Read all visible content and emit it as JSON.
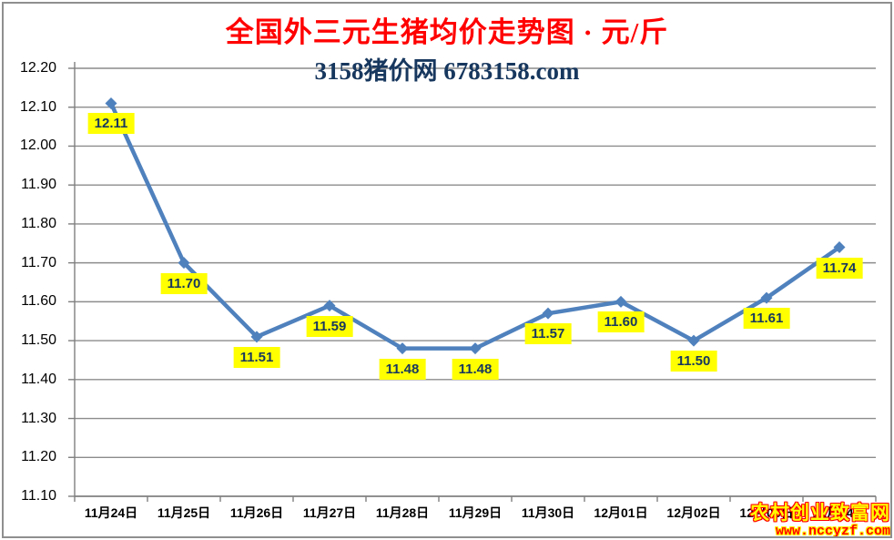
{
  "chart_data": {
    "type": "line",
    "title": "全国外三元生猪均价走势图 · 元/斤",
    "subtitle": "3158猪价网 6783158.com",
    "categories": [
      "11月24日",
      "11月25日",
      "11月26日",
      "11月27日",
      "11月28日",
      "11月29日",
      "11月30日",
      "12月01日",
      "12月02日",
      "12月03日",
      "12月04日"
    ],
    "values": [
      12.11,
      11.7,
      11.51,
      11.59,
      11.48,
      11.48,
      11.57,
      11.6,
      11.5,
      11.61,
      11.74
    ],
    "xlabel": "",
    "ylabel": "",
    "ylim": [
      11.1,
      12.2
    ],
    "ytick_step": 0.1,
    "grid": true,
    "legend": "none",
    "colors": {
      "title": "#ff0000",
      "subtitle": "#17375e",
      "line": "#4f81bd",
      "marker": "#4f81bd",
      "gridline": "#8c8c8c",
      "axis": "#7f7f7f",
      "tick_text": "#000000",
      "data_label_bg": "#ffff00",
      "data_label_text": "#17375e"
    }
  },
  "watermark": {
    "line1": "农村创业致富网",
    "line2": "www.nccyzf.com",
    "line1_color": "#ffff00",
    "line2_color": "#ff0000"
  }
}
